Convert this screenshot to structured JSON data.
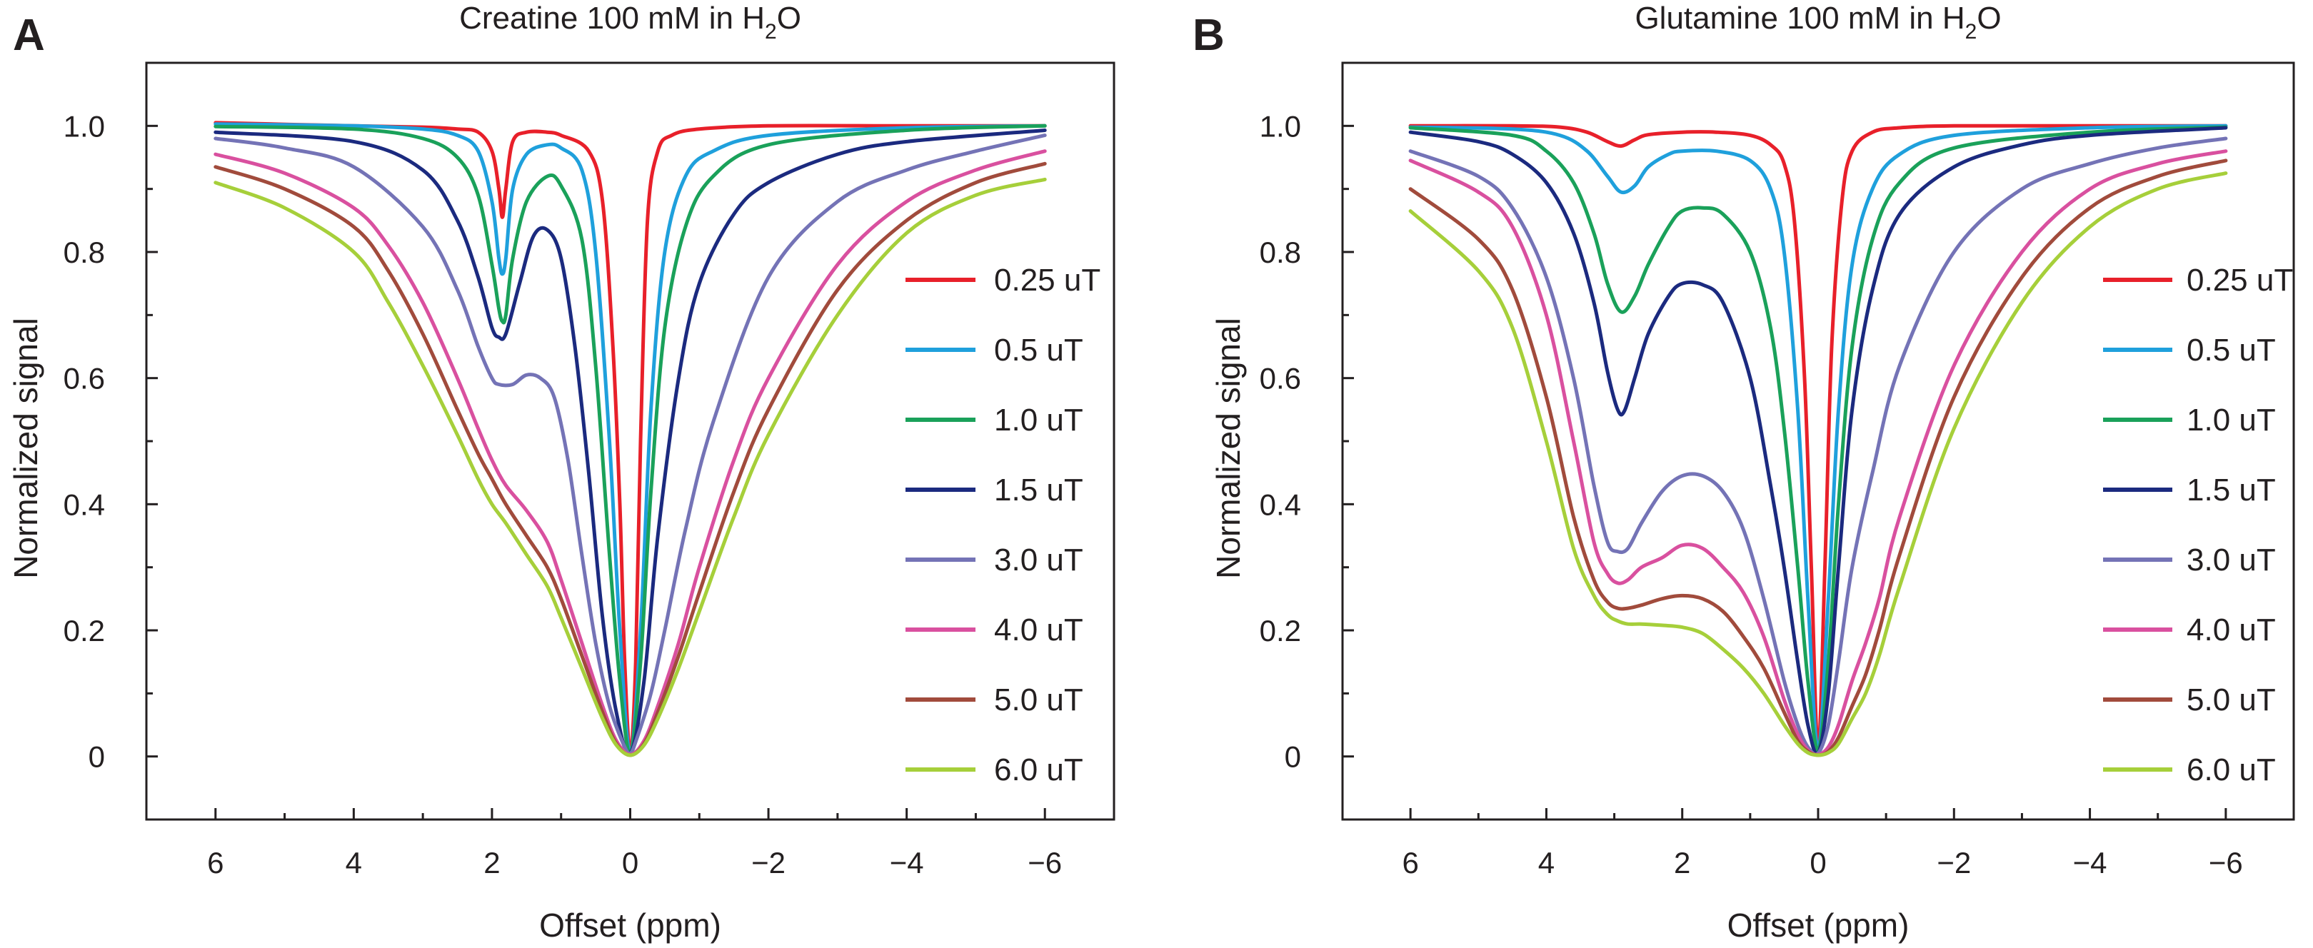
{
  "chart_data": [
    {
      "panel_label": "A",
      "type": "line",
      "title": "Creatine 100 mM in H",
      "title_sub": "2",
      "title_end": "O",
      "xlabel": "Offset (ppm)",
      "ylabel": "Normalized signal",
      "xlim": [
        7,
        -7
      ],
      "ylim": [
        -0.1,
        1.1
      ],
      "x_ticks": [
        6,
        4,
        2,
        0,
        -2,
        -4,
        -6
      ],
      "x_tick_labels": [
        "6",
        "4",
        "2",
        "0",
        "−2",
        "−4",
        "−6"
      ],
      "y_ticks": [
        0,
        0.2,
        0.4,
        0.6,
        0.8,
        1.0
      ],
      "y_tick_labels": [
        "0",
        "0.2",
        "0.4",
        "0.6",
        "0.8",
        "1.0"
      ],
      "legend_position": "right",
      "series": [
        {
          "name": "0.25 uT",
          "color": "#e8202a",
          "x": [
            6,
            4,
            3,
            2.5,
            2.2,
            2.0,
            1.9,
            1.85,
            1.8,
            1.7,
            1.5,
            1.2,
            1.0,
            0.6,
            0.4,
            0.25,
            0.15,
            0.08,
            0,
            -0.08,
            -0.15,
            -0.25,
            -0.4,
            -0.6,
            -1,
            -2,
            -4,
            -6
          ],
          "y": [
            1.005,
            1.0,
            0.998,
            0.995,
            0.99,
            0.96,
            0.9,
            0.855,
            0.9,
            0.975,
            0.99,
            0.99,
            0.985,
            0.96,
            0.88,
            0.65,
            0.4,
            0.15,
            0.005,
            0.15,
            0.5,
            0.85,
            0.96,
            0.985,
            0.995,
            1.0,
            1.0,
            1.0
          ]
        },
        {
          "name": "0.5 uT",
          "color": "#1fa0dc",
          "x": [
            6,
            4,
            3,
            2.5,
            2.2,
            2.0,
            1.9,
            1.85,
            1.8,
            1.7,
            1.5,
            1.2,
            1.0,
            0.7,
            0.5,
            0.3,
            0.15,
            0,
            -0.15,
            -0.3,
            -0.5,
            -0.8,
            -1.2,
            -2,
            -4,
            -6
          ],
          "y": [
            1.003,
            1.0,
            0.995,
            0.985,
            0.96,
            0.88,
            0.79,
            0.765,
            0.79,
            0.9,
            0.955,
            0.97,
            0.965,
            0.93,
            0.8,
            0.5,
            0.2,
            0.005,
            0.2,
            0.55,
            0.8,
            0.92,
            0.96,
            0.985,
            0.997,
            1.0
          ]
        },
        {
          "name": "1.0 uT",
          "color": "#1aa15a",
          "x": [
            6,
            4,
            3,
            2.5,
            2.2,
            2.0,
            1.9,
            1.85,
            1.8,
            1.7,
            1.5,
            1.2,
            1.0,
            0.7,
            0.5,
            0.3,
            0.15,
            0,
            -0.15,
            -0.3,
            -0.5,
            -0.8,
            -1.2,
            -2,
            -4,
            -6
          ],
          "y": [
            0.999,
            0.995,
            0.98,
            0.95,
            0.89,
            0.78,
            0.71,
            0.69,
            0.7,
            0.79,
            0.88,
            0.92,
            0.905,
            0.82,
            0.62,
            0.32,
            0.12,
            0.005,
            0.15,
            0.42,
            0.68,
            0.84,
            0.92,
            0.97,
            0.993,
            1.0
          ]
        },
        {
          "name": "1.5 uT",
          "color": "#1b2a7f",
          "x": [
            6,
            4,
            3,
            2.5,
            2.2,
            2.0,
            1.9,
            1.8,
            1.6,
            1.4,
            1.2,
            1.0,
            0.8,
            0.6,
            0.4,
            0.2,
            0,
            -0.2,
            -0.4,
            -0.7,
            -1,
            -1.5,
            -2,
            -3,
            -4,
            -6
          ],
          "y": [
            0.99,
            0.975,
            0.93,
            0.85,
            0.76,
            0.68,
            0.665,
            0.67,
            0.75,
            0.825,
            0.835,
            0.79,
            0.65,
            0.45,
            0.22,
            0.07,
            0.005,
            0.12,
            0.35,
            0.6,
            0.75,
            0.86,
            0.91,
            0.955,
            0.975,
            0.993
          ]
        },
        {
          "name": "3.0 uT",
          "color": "#7473b6",
          "x": [
            6,
            5,
            4,
            3,
            2.5,
            2.2,
            2.0,
            1.9,
            1.7,
            1.5,
            1.3,
            1.1,
            0.9,
            0.7,
            0.5,
            0.3,
            0.1,
            0,
            -0.1,
            -0.3,
            -0.5,
            -0.8,
            -1.2,
            -2,
            -3,
            -4,
            -5,
            -6
          ],
          "y": [
            0.98,
            0.965,
            0.935,
            0.84,
            0.74,
            0.65,
            0.6,
            0.59,
            0.59,
            0.605,
            0.6,
            0.57,
            0.47,
            0.32,
            0.18,
            0.08,
            0.02,
            0.005,
            0.03,
            0.1,
            0.2,
            0.36,
            0.53,
            0.76,
            0.88,
            0.93,
            0.96,
            0.985
          ]
        },
        {
          "name": "4.0 uT",
          "color": "#d9509f",
          "x": [
            6,
            5,
            4,
            3.5,
            3,
            2.5,
            2.2,
            2.0,
            1.8,
            1.5,
            1.2,
            1.0,
            0.7,
            0.4,
            0.2,
            0,
            -0.2,
            -0.4,
            -0.7,
            -1,
            -1.5,
            -2,
            -3,
            -4,
            -5,
            -6
          ],
          "y": [
            0.955,
            0.925,
            0.87,
            0.81,
            0.72,
            0.6,
            0.52,
            0.47,
            0.43,
            0.39,
            0.34,
            0.28,
            0.18,
            0.08,
            0.025,
            0.003,
            0.025,
            0.08,
            0.18,
            0.3,
            0.47,
            0.6,
            0.78,
            0.88,
            0.93,
            0.96
          ]
        },
        {
          "name": "5.0 uT",
          "color": "#a14b3c",
          "x": [
            6,
            5,
            4,
            3.5,
            3,
            2.5,
            2.2,
            2.0,
            1.8,
            1.5,
            1.2,
            1.0,
            0.7,
            0.4,
            0.2,
            0,
            -0.2,
            -0.4,
            -0.7,
            -1,
            -1.5,
            -2,
            -3,
            -4,
            -5,
            -6
          ],
          "y": [
            0.935,
            0.9,
            0.84,
            0.77,
            0.67,
            0.55,
            0.48,
            0.44,
            0.4,
            0.35,
            0.3,
            0.25,
            0.16,
            0.07,
            0.02,
            0.002,
            0.02,
            0.07,
            0.16,
            0.26,
            0.42,
            0.55,
            0.74,
            0.85,
            0.91,
            0.94
          ]
        },
        {
          "name": "6.0 uT",
          "color": "#a6cf3a",
          "x": [
            6,
            5,
            4,
            3.5,
            3,
            2.5,
            2.2,
            2.0,
            1.8,
            1.5,
            1.2,
            1.0,
            0.7,
            0.4,
            0.2,
            0,
            -0.2,
            -0.4,
            -0.7,
            -1,
            -1.5,
            -2,
            -3,
            -4,
            -5,
            -6
          ],
          "y": [
            0.91,
            0.87,
            0.8,
            0.72,
            0.62,
            0.51,
            0.44,
            0.4,
            0.37,
            0.32,
            0.27,
            0.22,
            0.14,
            0.06,
            0.018,
            0.002,
            0.018,
            0.06,
            0.14,
            0.23,
            0.38,
            0.51,
            0.7,
            0.83,
            0.89,
            0.915
          ]
        }
      ]
    },
    {
      "panel_label": "B",
      "type": "line",
      "title": "Glutamine 100 mM in H",
      "title_sub": "2",
      "title_end": "O",
      "xlabel": "Offset (ppm)",
      "ylabel": "Normalized signal",
      "xlim": [
        7,
        -7
      ],
      "ylim": [
        -0.1,
        1.1
      ],
      "x_ticks": [
        6,
        4,
        2,
        0,
        -2,
        -4,
        -6
      ],
      "x_tick_labels": [
        "6",
        "4",
        "2",
        "0",
        "−2",
        "−4",
        "−6"
      ],
      "y_ticks": [
        0,
        0.2,
        0.4,
        0.6,
        0.8,
        1.0
      ],
      "y_tick_labels": [
        "0",
        "0.2",
        "0.4",
        "0.6",
        "0.8",
        "1.0"
      ],
      "legend_position": "right",
      "series": [
        {
          "name": "0.25 uT",
          "color": "#e8202a",
          "x": [
            6,
            4.5,
            3.8,
            3.4,
            3.1,
            2.9,
            2.7,
            2.5,
            2.0,
            1.5,
            1.0,
            0.7,
            0.5,
            0.35,
            0.2,
            0.1,
            0,
            -0.1,
            -0.2,
            -0.35,
            -0.5,
            -0.8,
            -1.2,
            -2,
            -4,
            -6
          ],
          "y": [
            1.0,
            1.0,
            0.998,
            0.99,
            0.975,
            0.968,
            0.978,
            0.986,
            0.99,
            0.99,
            0.985,
            0.97,
            0.94,
            0.85,
            0.6,
            0.3,
            0.01,
            0.3,
            0.65,
            0.88,
            0.96,
            0.99,
            0.997,
            1.0,
            1.0,
            1.0
          ]
        },
        {
          "name": "0.5 uT",
          "color": "#1fa0dc",
          "x": [
            6,
            4.5,
            3.8,
            3.4,
            3.1,
            2.9,
            2.7,
            2.5,
            2.2,
            2.0,
            1.5,
            1.0,
            0.7,
            0.5,
            0.3,
            0.15,
            0,
            -0.15,
            -0.3,
            -0.5,
            -0.8,
            -1.2,
            -2,
            -4,
            -6
          ],
          "y": [
            0.998,
            0.995,
            0.985,
            0.96,
            0.92,
            0.895,
            0.905,
            0.935,
            0.955,
            0.96,
            0.96,
            0.945,
            0.9,
            0.8,
            0.55,
            0.25,
            0.01,
            0.25,
            0.55,
            0.78,
            0.9,
            0.955,
            0.985,
            0.997,
            1.0
          ]
        },
        {
          "name": "1.0 uT",
          "color": "#1aa15a",
          "x": [
            6,
            4.5,
            4.0,
            3.6,
            3.3,
            3.1,
            2.9,
            2.7,
            2.5,
            2.2,
            2.0,
            1.7,
            1.4,
            1.0,
            0.7,
            0.5,
            0.3,
            0.15,
            0,
            -0.15,
            -0.3,
            -0.5,
            -0.8,
            -1.2,
            -2,
            -4,
            -6
          ],
          "y": [
            0.997,
            0.985,
            0.96,
            0.91,
            0.83,
            0.75,
            0.705,
            0.73,
            0.78,
            0.84,
            0.865,
            0.87,
            0.86,
            0.8,
            0.68,
            0.52,
            0.3,
            0.12,
            0.01,
            0.15,
            0.4,
            0.65,
            0.82,
            0.91,
            0.965,
            0.99,
            0.998
          ]
        },
        {
          "name": "1.5 uT",
          "color": "#1b2a7f",
          "x": [
            6,
            5,
            4.5,
            4,
            3.6,
            3.3,
            3.1,
            2.95,
            2.85,
            2.7,
            2.5,
            2.2,
            2.0,
            1.7,
            1.4,
            1.0,
            0.7,
            0.5,
            0.3,
            0.15,
            0,
            -0.15,
            -0.3,
            -0.5,
            -0.8,
            -1.2,
            -2,
            -3,
            -4,
            -6
          ],
          "y": [
            0.99,
            0.975,
            0.955,
            0.91,
            0.83,
            0.72,
            0.61,
            0.55,
            0.548,
            0.6,
            0.67,
            0.73,
            0.75,
            0.748,
            0.72,
            0.6,
            0.43,
            0.3,
            0.15,
            0.05,
            0.005,
            0.1,
            0.3,
            0.55,
            0.74,
            0.86,
            0.935,
            0.97,
            0.985,
            0.997
          ]
        },
        {
          "name": "3.0 uT",
          "color": "#7473b6",
          "x": [
            6,
            5,
            4.5,
            4,
            3.6,
            3.3,
            3.1,
            2.95,
            2.8,
            2.6,
            2.3,
            2.0,
            1.7,
            1.4,
            1.1,
            0.8,
            0.5,
            0.3,
            0.15,
            0,
            -0.15,
            -0.3,
            -0.5,
            -0.8,
            -1.2,
            -2,
            -3,
            -4,
            -5,
            -6
          ],
          "y": [
            0.96,
            0.92,
            0.87,
            0.76,
            0.6,
            0.43,
            0.34,
            0.325,
            0.33,
            0.37,
            0.42,
            0.445,
            0.445,
            0.42,
            0.36,
            0.25,
            0.12,
            0.05,
            0.015,
            0.005,
            0.05,
            0.15,
            0.3,
            0.45,
            0.62,
            0.8,
            0.9,
            0.94,
            0.965,
            0.98
          ]
        },
        {
          "name": "4.0 uT",
          "color": "#d9509f",
          "x": [
            6,
            5,
            4.5,
            4,
            3.6,
            3.3,
            3.1,
            2.95,
            2.8,
            2.6,
            2.3,
            2.0,
            1.7,
            1.4,
            1.1,
            0.8,
            0.5,
            0.3,
            0.15,
            0,
            -0.15,
            -0.3,
            -0.5,
            -0.7,
            -0.9,
            -1.2,
            -2,
            -3,
            -4,
            -5,
            -6
          ],
          "y": [
            0.945,
            0.895,
            0.84,
            0.7,
            0.5,
            0.34,
            0.29,
            0.275,
            0.28,
            0.3,
            0.315,
            0.335,
            0.33,
            0.3,
            0.26,
            0.19,
            0.09,
            0.035,
            0.01,
            0.003,
            0.015,
            0.05,
            0.12,
            0.18,
            0.25,
            0.38,
            0.62,
            0.8,
            0.9,
            0.94,
            0.96
          ]
        },
        {
          "name": "5.0 uT",
          "color": "#a14b3c",
          "x": [
            6,
            5,
            4.5,
            4,
            3.6,
            3.3,
            3.1,
            2.95,
            2.8,
            2.6,
            2.3,
            2.0,
            1.7,
            1.4,
            1.1,
            0.8,
            0.5,
            0.3,
            0.15,
            0,
            -0.15,
            -0.3,
            -0.5,
            -0.7,
            -0.9,
            -1.2,
            -2,
            -3,
            -4,
            -5,
            -6
          ],
          "y": [
            0.9,
            0.82,
            0.74,
            0.57,
            0.38,
            0.28,
            0.245,
            0.235,
            0.235,
            0.24,
            0.25,
            0.255,
            0.25,
            0.23,
            0.19,
            0.14,
            0.07,
            0.025,
            0.008,
            0.002,
            0.008,
            0.03,
            0.08,
            0.13,
            0.2,
            0.32,
            0.57,
            0.76,
            0.87,
            0.92,
            0.945
          ]
        },
        {
          "name": "6.0 uT",
          "color": "#a6cf3a",
          "x": [
            6,
            5,
            4.5,
            4,
            3.6,
            3.3,
            3.1,
            2.95,
            2.8,
            2.6,
            2.3,
            2.0,
            1.7,
            1.4,
            1.1,
            0.8,
            0.5,
            0.3,
            0.15,
            0,
            -0.15,
            -0.3,
            -0.5,
            -0.7,
            -0.9,
            -1.2,
            -2,
            -3,
            -4,
            -5,
            -6
          ],
          "y": [
            0.865,
            0.77,
            0.68,
            0.5,
            0.33,
            0.255,
            0.225,
            0.215,
            0.21,
            0.21,
            0.208,
            0.205,
            0.195,
            0.17,
            0.14,
            0.1,
            0.05,
            0.02,
            0.006,
            0.002,
            0.006,
            0.02,
            0.06,
            0.1,
            0.16,
            0.27,
            0.52,
            0.72,
            0.84,
            0.9,
            0.925
          ]
        }
      ]
    }
  ]
}
